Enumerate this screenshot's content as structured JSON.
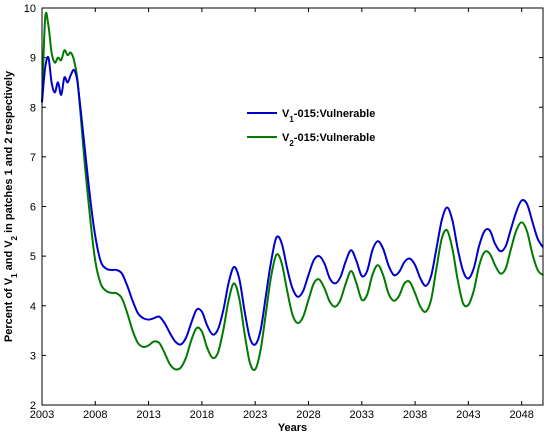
{
  "chart_data": {
    "type": "line",
    "xlabel": "Years",
    "ylabel_parts": [
      "Percent of V",
      "1",
      " and V",
      "2",
      " in patches 1 and 2 respectively"
    ],
    "xlim": [
      2003,
      2050
    ],
    "ylim": [
      2,
      10
    ],
    "xticks": [
      2003,
      2008,
      2013,
      2018,
      2023,
      2028,
      2033,
      2038,
      2043,
      2048
    ],
    "yticks": [
      2,
      3,
      4,
      5,
      6,
      7,
      8,
      9,
      10
    ],
    "legend_position": "upper-middle",
    "series": [
      {
        "name_parts": [
          "V",
          "1",
          "-015:Vulnerable"
        ],
        "color": "#0000cc",
        "x": [
          2003.0,
          2003.3,
          2003.6,
          2003.9,
          2004.2,
          2004.5,
          2004.8,
          2005.1,
          2005.4,
          2005.7,
          2006.0,
          2006.3,
          2006.6,
          2007.0,
          2007.5,
          2008.0,
          2008.5,
          2009.0,
          2009.5,
          2010.0,
          2010.5,
          2011.0,
          2011.5,
          2012.0,
          2012.5,
          2013.0,
          2013.5,
          2014.0,
          2014.5,
          2015.0,
          2015.5,
          2016.0,
          2016.5,
          2017.0,
          2017.5,
          2018.0,
          2018.5,
          2019.0,
          2019.5,
          2020.0,
          2020.5,
          2021.0,
          2021.5,
          2022.0,
          2022.5,
          2023.0,
          2023.5,
          2024.0,
          2024.5,
          2025.0,
          2025.5,
          2026.0,
          2026.5,
          2027.0,
          2027.5,
          2028.0,
          2028.5,
          2029.0,
          2029.5,
          2030.0,
          2030.5,
          2031.0,
          2031.5,
          2032.0,
          2032.5,
          2033.0,
          2033.5,
          2034.0,
          2034.5,
          2035.0,
          2035.5,
          2036.0,
          2036.5,
          2037.0,
          2037.5,
          2038.0,
          2038.5,
          2039.0,
          2039.5,
          2040.0,
          2040.5,
          2041.0,
          2041.5,
          2042.0,
          2042.5,
          2043.0,
          2043.5,
          2044.0,
          2044.5,
          2045.0,
          2045.5,
          2046.0,
          2046.5,
          2047.0,
          2047.5,
          2048.0,
          2048.5,
          2049.0,
          2049.5,
          2050.0
        ],
        "y": [
          8.1,
          8.8,
          9.0,
          8.5,
          8.3,
          8.5,
          8.25,
          8.6,
          8.5,
          8.65,
          8.75,
          8.55,
          8.0,
          7.2,
          6.2,
          5.4,
          4.9,
          4.75,
          4.72,
          4.72,
          4.65,
          4.4,
          4.1,
          3.85,
          3.75,
          3.72,
          3.75,
          3.78,
          3.65,
          3.45,
          3.28,
          3.22,
          3.35,
          3.65,
          3.92,
          3.88,
          3.6,
          3.42,
          3.52,
          3.9,
          4.45,
          4.78,
          4.55,
          3.9,
          3.35,
          3.22,
          3.5,
          4.2,
          4.9,
          5.38,
          5.25,
          4.75,
          4.35,
          4.18,
          4.3,
          4.62,
          4.92,
          5.0,
          4.85,
          4.55,
          4.45,
          4.58,
          4.9,
          5.12,
          4.9,
          4.6,
          4.7,
          5.12,
          5.3,
          5.15,
          4.82,
          4.62,
          4.68,
          4.88,
          4.95,
          4.82,
          4.55,
          4.4,
          4.6,
          5.15,
          5.72,
          5.98,
          5.72,
          5.15,
          4.7,
          4.55,
          4.75,
          5.2,
          5.5,
          5.52,
          5.25,
          5.1,
          5.2,
          5.55,
          5.9,
          6.12,
          6.05,
          5.7,
          5.35,
          5.18
        ]
      },
      {
        "name_parts": [
          "V",
          "2",
          "-015:Vulnerable"
        ],
        "color": "#007a00",
        "x": [
          2003.0,
          2003.3,
          2003.6,
          2003.9,
          2004.2,
          2004.5,
          2004.8,
          2005.1,
          2005.4,
          2005.7,
          2006.0,
          2006.3,
          2006.6,
          2007.0,
          2007.5,
          2008.0,
          2008.5,
          2009.0,
          2009.5,
          2010.0,
          2010.5,
          2011.0,
          2011.5,
          2012.0,
          2012.5,
          2013.0,
          2013.5,
          2014.0,
          2014.5,
          2015.0,
          2015.5,
          2016.0,
          2016.5,
          2017.0,
          2017.5,
          2018.0,
          2018.5,
          2019.0,
          2019.5,
          2020.0,
          2020.5,
          2021.0,
          2021.5,
          2022.0,
          2022.5,
          2023.0,
          2023.5,
          2024.0,
          2024.5,
          2025.0,
          2025.5,
          2026.0,
          2026.5,
          2027.0,
          2027.5,
          2028.0,
          2028.5,
          2029.0,
          2029.5,
          2030.0,
          2030.5,
          2031.0,
          2031.5,
          2032.0,
          2032.5,
          2033.0,
          2033.5,
          2034.0,
          2034.5,
          2035.0,
          2035.5,
          2036.0,
          2036.5,
          2037.0,
          2037.5,
          2038.0,
          2038.5,
          2039.0,
          2039.5,
          2040.0,
          2040.5,
          2041.0,
          2041.5,
          2042.0,
          2042.5,
          2043.0,
          2043.5,
          2044.0,
          2044.5,
          2045.0,
          2045.5,
          2046.0,
          2046.5,
          2047.0,
          2047.5,
          2048.0,
          2048.5,
          2049.0,
          2049.5,
          2050.0
        ],
        "y": [
          8.1,
          9.8,
          9.65,
          9.1,
          8.9,
          9.0,
          8.95,
          9.15,
          9.05,
          9.1,
          8.95,
          8.6,
          7.9,
          6.9,
          5.8,
          4.9,
          4.45,
          4.3,
          4.26,
          4.25,
          4.15,
          3.85,
          3.5,
          3.25,
          3.17,
          3.2,
          3.28,
          3.25,
          3.05,
          2.82,
          2.72,
          2.75,
          2.95,
          3.3,
          3.55,
          3.48,
          3.15,
          2.95,
          3.05,
          3.5,
          4.1,
          4.45,
          4.15,
          3.45,
          2.85,
          2.72,
          3.1,
          3.85,
          4.6,
          5.03,
          4.85,
          4.3,
          3.82,
          3.65,
          3.78,
          4.12,
          4.45,
          4.53,
          4.35,
          4.08,
          3.98,
          4.12,
          4.45,
          4.7,
          4.45,
          4.12,
          4.22,
          4.62,
          4.82,
          4.62,
          4.25,
          4.1,
          4.2,
          4.45,
          4.48,
          4.25,
          3.98,
          3.88,
          4.12,
          4.75,
          5.35,
          5.52,
          5.15,
          4.52,
          4.05,
          4.02,
          4.3,
          4.8,
          5.08,
          5.05,
          4.82,
          4.65,
          4.75,
          5.15,
          5.52,
          5.68,
          5.5,
          5.05,
          4.72,
          4.62
        ]
      }
    ]
  }
}
